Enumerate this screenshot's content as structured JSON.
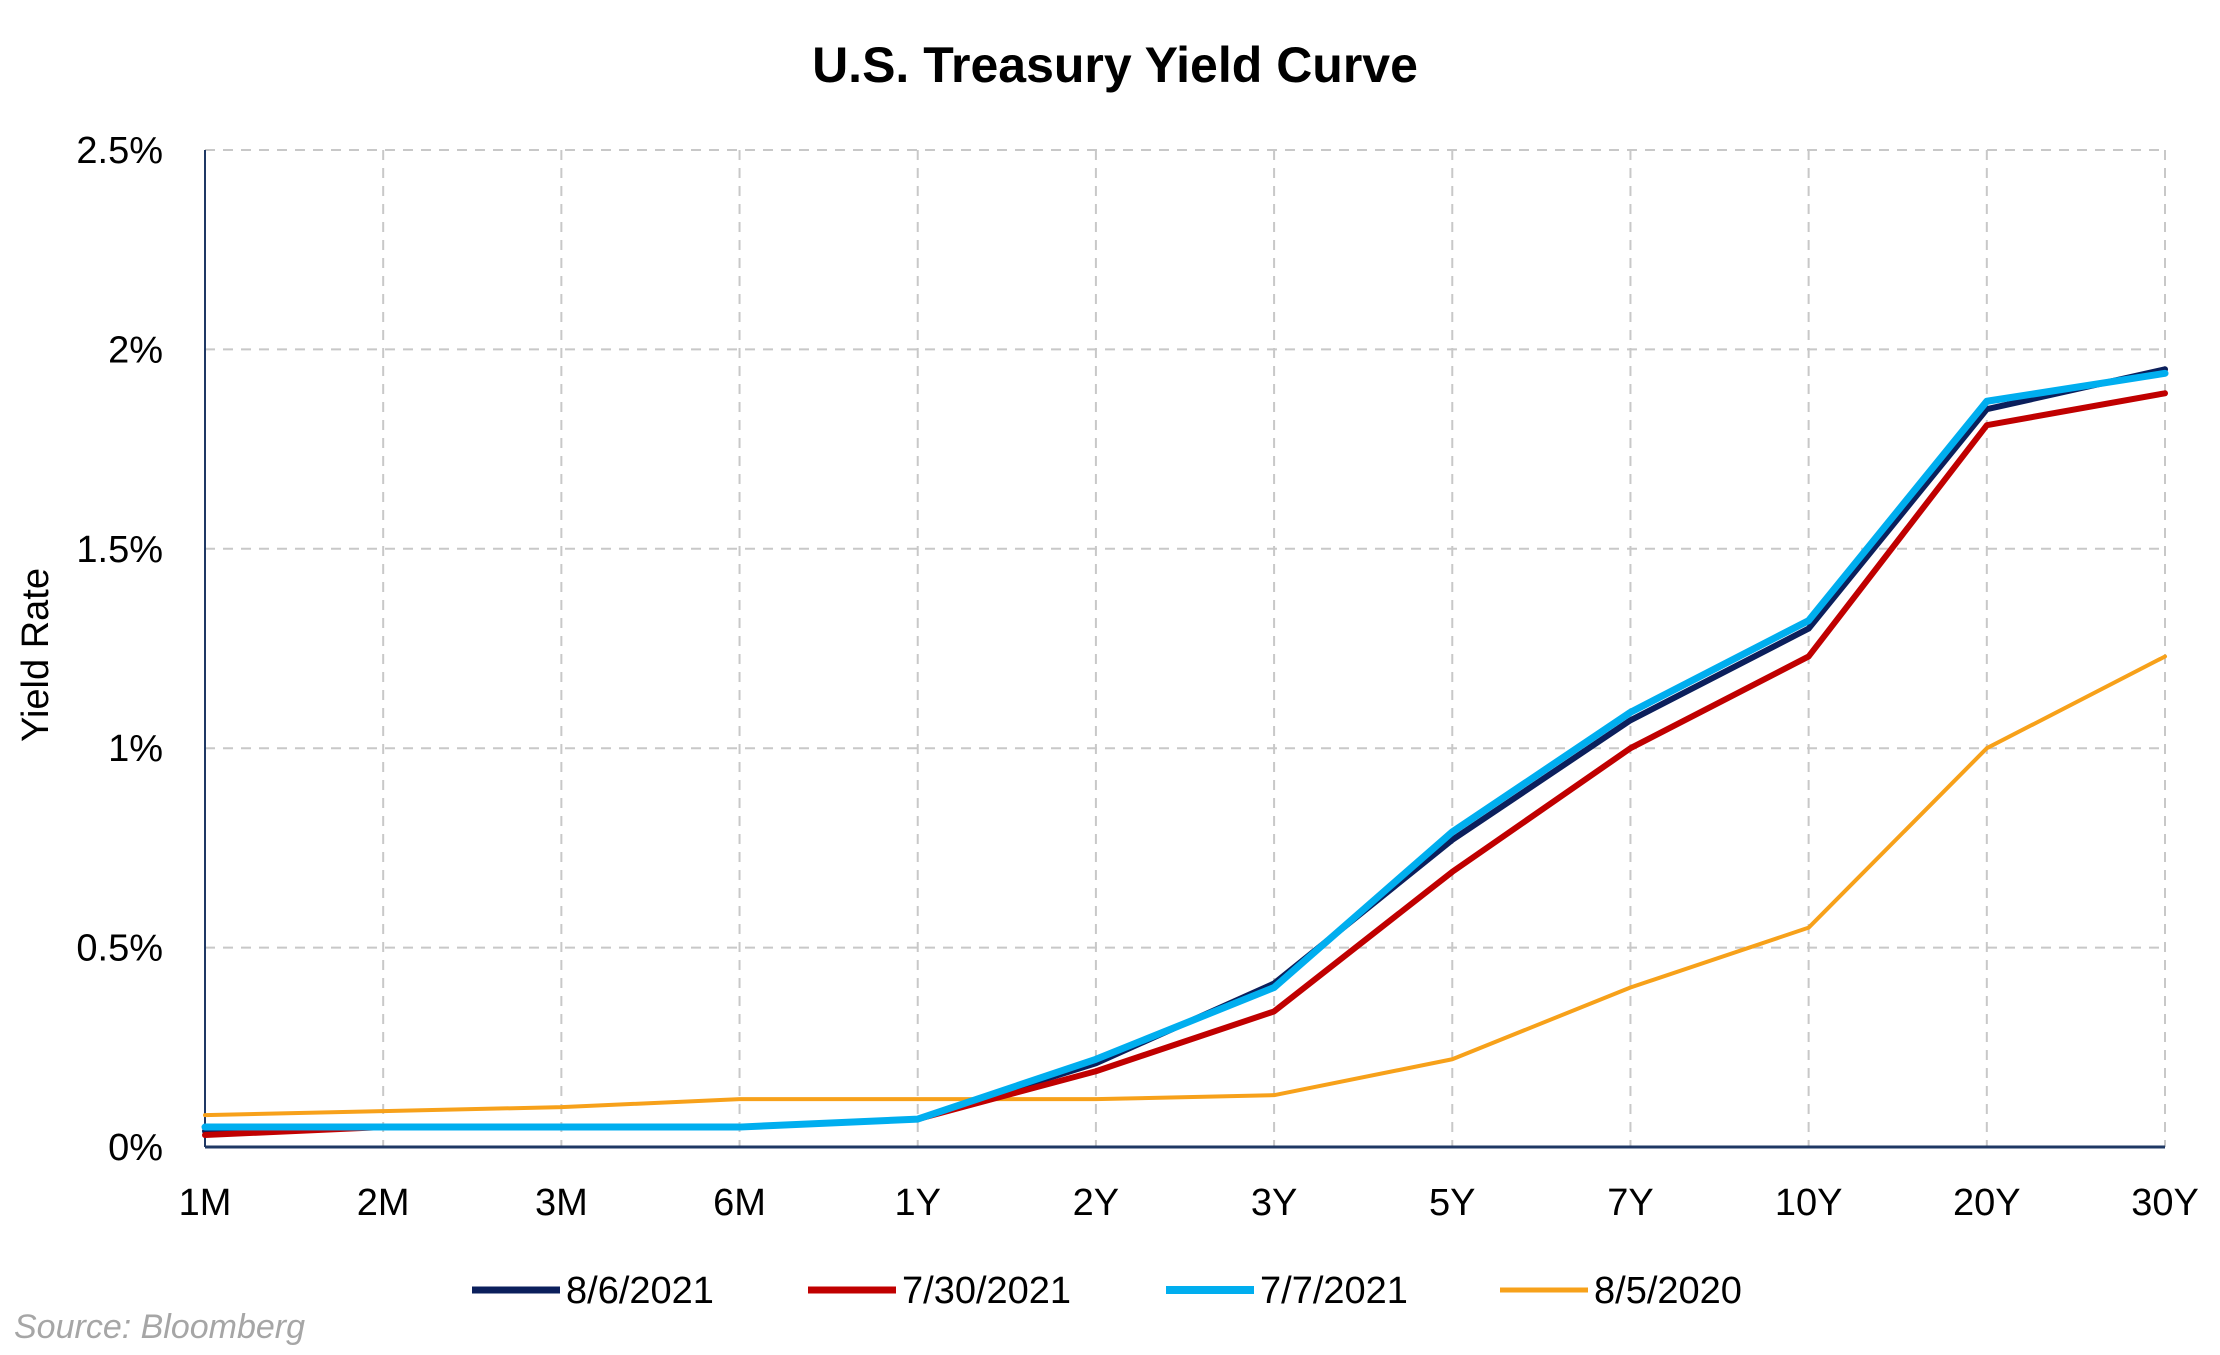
{
  "chart_data": {
    "type": "line",
    "title": "U.S. Treasury Yield Curve",
    "xlabel": "",
    "ylabel": "Yield Rate",
    "categories": [
      "1M",
      "2M",
      "3M",
      "6M",
      "1Y",
      "2Y",
      "3Y",
      "5Y",
      "7Y",
      "10Y",
      "20Y",
      "30Y"
    ],
    "y_ticks": [
      "0%",
      "0.5%",
      "1%",
      "1.5%",
      "2%",
      "2.5%"
    ],
    "ylim": [
      0,
      2.5
    ],
    "grid": true,
    "legend_position": "bottom",
    "series": [
      {
        "name": "8/6/2021",
        "color": "#0b1f5c",
        "values": [
          0.04,
          0.05,
          0.05,
          0.05,
          0.07,
          0.21,
          0.41,
          0.77,
          1.07,
          1.3,
          1.85,
          1.95
        ]
      },
      {
        "name": "7/30/2021",
        "color": "#c00000",
        "values": [
          0.03,
          0.05,
          0.05,
          0.05,
          0.07,
          0.19,
          0.34,
          0.69,
          1.0,
          1.23,
          1.81,
          1.89
        ]
      },
      {
        "name": "7/7/2021",
        "color": "#00aeef",
        "values": [
          0.05,
          0.05,
          0.05,
          0.05,
          0.07,
          0.22,
          0.4,
          0.79,
          1.09,
          1.32,
          1.87,
          1.94
        ]
      },
      {
        "name": "8/5/2020",
        "color": "#f7a11a",
        "values": [
          0.08,
          0.09,
          0.1,
          0.12,
          0.12,
          0.12,
          0.13,
          0.22,
          0.4,
          0.55,
          1.0,
          1.23
        ]
      }
    ]
  },
  "source": "Source: Bloomberg"
}
